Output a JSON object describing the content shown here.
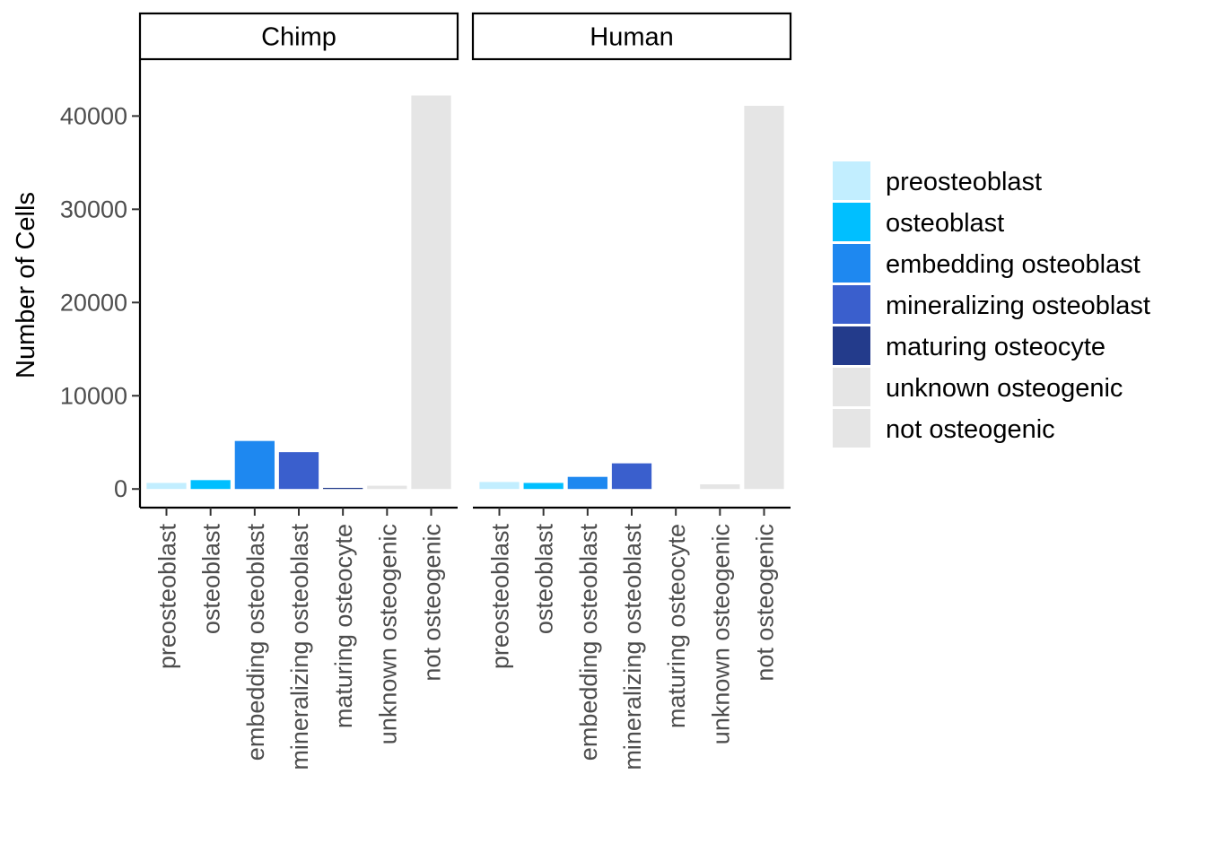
{
  "chart_data": {
    "type": "bar",
    "title": "",
    "xlabel": "",
    "ylabel": "Number of Cells",
    "ylim": [
      -2000,
      46000
    ],
    "yticks": [
      0,
      10000,
      20000,
      30000,
      40000
    ],
    "ytick_labels": [
      "0",
      "10000",
      "20000",
      "30000",
      "40000"
    ],
    "grid": false,
    "legend_position": "right",
    "categories": [
      "preosteoblast",
      "osteoblast",
      "embedding osteoblast",
      "mineralizing osteoblast",
      "maturing osteocyte",
      "unknown osteogenic",
      "not osteogenic"
    ],
    "colors": [
      "#c2eeff",
      "#00bfff",
      "#1e88f0",
      "#3a5fcd",
      "#233b8b",
      "#e5e5e5",
      "#e5e5e5"
    ],
    "facets": [
      {
        "label": "Chimp",
        "values": [
          650,
          950,
          5150,
          3950,
          120,
          350,
          42200
        ]
      },
      {
        "label": "Human",
        "values": [
          750,
          650,
          1300,
          2750,
          0,
          500,
          41100
        ]
      }
    ],
    "legend": {
      "entries": [
        "preosteoblast",
        "osteoblast",
        "embedding osteoblast",
        "mineralizing osteoblast",
        "maturing osteocyte",
        "unknown osteogenic",
        "not osteogenic"
      ]
    }
  }
}
